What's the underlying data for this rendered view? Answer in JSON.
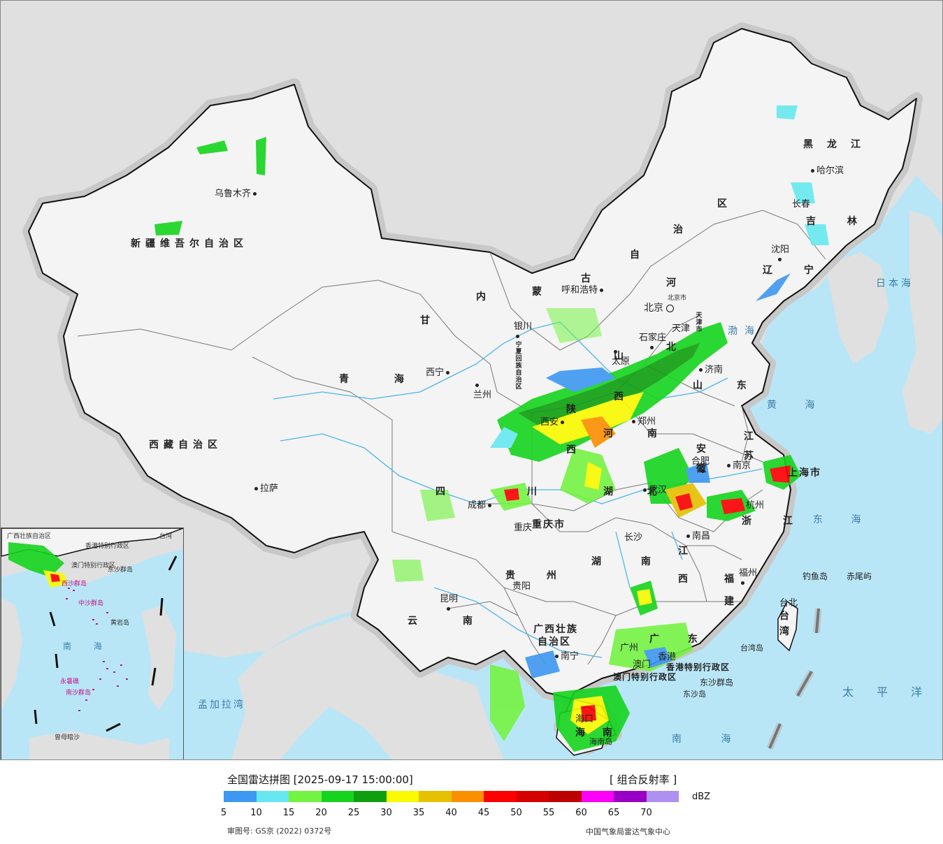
{
  "map": {
    "provinces": [
      {
        "id": "xinjiang",
        "name": "新疆维吾尔自治区"
      },
      {
        "id": "xizang",
        "name": "西藏自治区"
      },
      {
        "id": "qinghai",
        "name": "青 海"
      },
      {
        "id": "gansu",
        "name": "甘"
      },
      {
        "id": "neimenggu_1",
        "name": "内"
      },
      {
        "id": "neimenggu_2",
        "name": "蒙"
      },
      {
        "id": "neimenggu_3",
        "name": "古"
      },
      {
        "id": "neimenggu_4",
        "name": "自"
      },
      {
        "id": "neimenggu_5",
        "name": "治"
      },
      {
        "id": "neimenggu_6",
        "name": "区"
      },
      {
        "id": "heilongjiang",
        "name": "黑龙江"
      },
      {
        "id": "jilin",
        "name": "吉 林"
      },
      {
        "id": "liaoning",
        "name": "辽 宁"
      },
      {
        "id": "hebei_1",
        "name": "河"
      },
      {
        "id": "hebei_2",
        "name": "北"
      },
      {
        "id": "shandong",
        "name": "山 东"
      },
      {
        "id": "jiangsu",
        "name": "江 苏"
      },
      {
        "id": "anhui",
        "name": "安 徽"
      },
      {
        "id": "henan",
        "name": "河 南"
      },
      {
        "id": "hubei",
        "name": "湖 北"
      },
      {
        "id": "hunan",
        "name": "湖 南"
      },
      {
        "id": "jiangxi",
        "name": "江 西"
      },
      {
        "id": "zhejiang",
        "name": "浙 江"
      },
      {
        "id": "fujian",
        "name": "福 建"
      },
      {
        "id": "guangdong",
        "name": "广 东"
      },
      {
        "id": "guangxi_1",
        "name": "广西壮族"
      },
      {
        "id": "guangxi_2",
        "name": "自治区"
      },
      {
        "id": "yunnan",
        "name": "云 南"
      },
      {
        "id": "guizhou",
        "name": "贵 州"
      },
      {
        "id": "sichuan",
        "name": "四 川"
      },
      {
        "id": "chongqing",
        "name": "重庆市"
      },
      {
        "id": "shaanxi",
        "name": "陕 西"
      },
      {
        "id": "shanxi",
        "name": "山 西"
      },
      {
        "id": "ningxia",
        "name": "宁夏回族自治区"
      },
      {
        "id": "hainan",
        "name": "海 南"
      },
      {
        "id": "shanghai",
        "name": "上海市"
      },
      {
        "id": "taiwan",
        "name": "台湾"
      },
      {
        "id": "hk",
        "name": "香港特别行政区"
      },
      {
        "id": "macau",
        "name": "澳门特别行政区"
      },
      {
        "id": "beijing",
        "name": "北京市"
      },
      {
        "id": "tianjin",
        "name": "天津市"
      }
    ],
    "cities": [
      {
        "id": "urumqi",
        "name": "乌鲁木齐"
      },
      {
        "id": "lhasa",
        "name": "拉萨"
      },
      {
        "id": "xining",
        "name": "西宁"
      },
      {
        "id": "lanzhou",
        "name": "兰州"
      },
      {
        "id": "yinchuan",
        "name": "银川"
      },
      {
        "id": "hohhot",
        "name": "呼和浩特"
      },
      {
        "id": "beijing",
        "name": "北京"
      },
      {
        "id": "tianjin",
        "name": "天津"
      },
      {
        "id": "shijiazhuang",
        "name": "石家庄"
      },
      {
        "id": "taiyuan",
        "name": "太原"
      },
      {
        "id": "jinan",
        "name": "济南"
      },
      {
        "id": "xian",
        "name": "西安"
      },
      {
        "id": "zhengzhou",
        "name": "郑州"
      },
      {
        "id": "hefei",
        "name": "合肥"
      },
      {
        "id": "nanjing",
        "name": "南京"
      },
      {
        "id": "hangzhou",
        "name": "杭州"
      },
      {
        "id": "wuhan",
        "name": "武汉"
      },
      {
        "id": "chengdu",
        "name": "成都"
      },
      {
        "id": "chongqing",
        "name": "重庆"
      },
      {
        "id": "changsha",
        "name": "长沙"
      },
      {
        "id": "nanchang",
        "name": "南昌"
      },
      {
        "id": "fuzhou",
        "name": "福州"
      },
      {
        "id": "taibei",
        "name": "台北"
      },
      {
        "id": "guiyang",
        "name": "贵阳"
      },
      {
        "id": "kunming",
        "name": "昆明"
      },
      {
        "id": "nanning",
        "name": "南宁"
      },
      {
        "id": "guangzhou",
        "name": "广州"
      },
      {
        "id": "xianggang",
        "name": "香港"
      },
      {
        "id": "aomen",
        "name": "澳门"
      },
      {
        "id": "haikou",
        "name": "海口"
      },
      {
        "id": "shenyang",
        "name": "沈阳"
      },
      {
        "id": "changchun",
        "name": "长春"
      },
      {
        "id": "harbin",
        "name": "哈尔滨"
      }
    ],
    "seas": [
      {
        "id": "bohai",
        "name": "渤海"
      },
      {
        "id": "huanghai",
        "name": "黄 海"
      },
      {
        "id": "donghai",
        "name": "东 海"
      },
      {
        "id": "nanhai",
        "name": "南 海"
      },
      {
        "id": "ribenhai",
        "name": "日本海"
      },
      {
        "id": "taipingyang",
        "name": "太 平 洋"
      },
      {
        "id": "mengjialawan",
        "name": "孟加拉湾"
      }
    ],
    "islands": [
      {
        "id": "diaoyudao",
        "name": "钓鱼岛"
      },
      {
        "id": "chiweiyu",
        "name": "赤尾屿"
      },
      {
        "id": "taiwandao",
        "name": "台湾岛"
      },
      {
        "id": "dongsha",
        "name": "东沙群岛"
      },
      {
        "id": "dongshadao",
        "name": "东沙岛"
      },
      {
        "id": "hainandao",
        "name": "海南岛"
      }
    ],
    "inset": {
      "labels": [
        {
          "id": "gx",
          "name": "广西壮族自治区"
        },
        {
          "id": "hk",
          "name": "香港特别行政区"
        },
        {
          "id": "mo",
          "name": "澳门特别行政区"
        },
        {
          "id": "tw",
          "name": "台湾"
        },
        {
          "id": "ds",
          "name": "东沙群岛"
        },
        {
          "id": "xs",
          "name": "西沙群岛"
        },
        {
          "id": "zs",
          "name": "中沙群岛"
        },
        {
          "id": "hy",
          "name": "黄岩岛"
        },
        {
          "id": "nh",
          "name": "南 海"
        },
        {
          "id": "ns",
          "name": "南沙群岛"
        },
        {
          "id": "ys",
          "name": "永暑礁"
        },
        {
          "id": "zm",
          "name": "曾母暗沙"
        }
      ]
    }
  },
  "legend": {
    "title": "全国雷达拼图 [2025-09-17 15:00:00]",
    "product": "[ 组合反射率 ]",
    "unit": "dBZ",
    "colors": [
      "#3e98f1",
      "#67e8f0",
      "#75f343",
      "#16d41e",
      "#0e9f0e",
      "#fafa00",
      "#e5c100",
      "#fc8f00",
      "#fc0000",
      "#d50000",
      "#bd0000",
      "#fc00f9",
      "#9a00c3",
      "#ad90f0"
    ],
    "ticks": [
      "5",
      "10",
      "15",
      "20",
      "25",
      "30",
      "35",
      "40",
      "45",
      "50",
      "55",
      "60",
      "65",
      "70"
    ],
    "approval_number": "审图号: GS京 (2022) 0372号",
    "organization": "中国气象局雷达气象中心"
  }
}
